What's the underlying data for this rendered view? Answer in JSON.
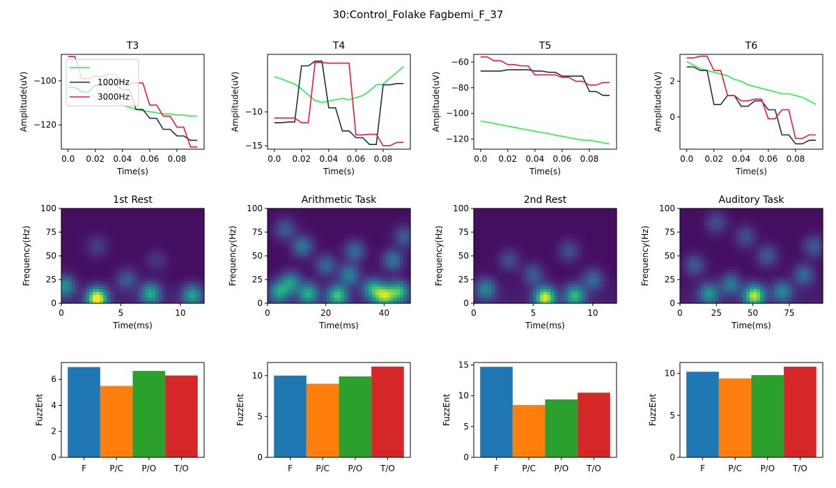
{
  "figure_title": "30:Control_Folake Fagbemi_F_37",
  "colors": {
    "green": "#22ee44",
    "navy": "#1a2e4a",
    "red": "#e8153c",
    "bar_F": "#1f77b4",
    "bar_PC": "#ff7f0e",
    "bar_PO": "#2ca02c",
    "bar_TO": "#d62728"
  },
  "chart_data": [
    {
      "type": "line",
      "title": "T3",
      "xlabel": "Time(s)",
      "ylabel": "Amplitude(uV)",
      "xlim": [
        -0.005,
        0.1
      ],
      "ylim": [
        -131,
        -88
      ],
      "xticks": [
        0.0,
        0.02,
        0.04,
        0.06,
        0.08
      ],
      "xtick_labels": [
        "0.0",
        "0.02",
        "0.04",
        "0.06",
        "0.08"
      ],
      "yticks": [
        -100,
        -120
      ],
      "ytick_labels": [
        "−100",
        "−120"
      ],
      "x": [
        0.0,
        0.005,
        0.01,
        0.015,
        0.02,
        0.025,
        0.03,
        0.035,
        0.04,
        0.045,
        0.05,
        0.055,
        0.06,
        0.065,
        0.07,
        0.075,
        0.08,
        0.085,
        0.09,
        0.095
      ],
      "legend": {
        "placement": "upper-left",
        "entries": [
          "",
          "1000Hz",
          "3000Hz"
        ]
      },
      "series": [
        {
          "color_key": "green",
          "values": [
            -103,
            -103,
            -104,
            -106,
            -107,
            -108,
            -109,
            -110,
            -111,
            -112,
            -113,
            -113.5,
            -114,
            -114.5,
            -115,
            -115,
            -115.5,
            -115.5,
            -116,
            -116
          ]
        },
        {
          "color_key": "navy",
          "values": [
            -103,
            -103,
            -105,
            -105,
            -102,
            -102,
            -102,
            -102,
            -104,
            -104,
            -113,
            -113,
            -117,
            -117,
            -122,
            -122,
            -125,
            -125,
            -127,
            -127
          ]
        },
        {
          "color_key": "red",
          "values": [
            -89,
            -89,
            -99,
            -99,
            -98,
            -98,
            -97,
            -97,
            -101,
            -101,
            -101,
            -101,
            -111,
            -111,
            -116,
            -116,
            -121,
            -121,
            -130,
            -130
          ]
        }
      ]
    },
    {
      "type": "line",
      "title": "T4",
      "xlabel": "Time(s)",
      "ylabel": "Amplitude(uV)",
      "xlim": [
        -0.005,
        0.1
      ],
      "ylim": [
        -15.5,
        -1.5
      ],
      "xticks": [
        0.0,
        0.02,
        0.04,
        0.06,
        0.08
      ],
      "xtick_labels": [
        "0.0",
        "0.02",
        "0.04",
        "0.06",
        "0.08"
      ],
      "yticks": [
        -10,
        -15
      ],
      "ytick_labels": [
        "−10",
        "−15"
      ],
      "x": [
        0.0,
        0.005,
        0.01,
        0.015,
        0.02,
        0.025,
        0.03,
        0.035,
        0.04,
        0.045,
        0.05,
        0.055,
        0.06,
        0.065,
        0.07,
        0.075,
        0.08,
        0.085,
        0.09,
        0.095
      ],
      "series": [
        {
          "color_key": "green",
          "values": [
            -4.8,
            -5.1,
            -5.5,
            -5.9,
            -6.6,
            -7.5,
            -8.3,
            -8.6,
            -8.4,
            -8.2,
            -8.0,
            -8.2,
            -7.9,
            -7.6,
            -6.9,
            -6.0,
            -5.9,
            -5.0,
            -4.2,
            -3.3
          ]
        },
        {
          "color_key": "navy",
          "values": [
            -11.6,
            -11.6,
            -11.5,
            -11.5,
            -3.2,
            -3.2,
            -2.5,
            -2.5,
            -9.4,
            -9.4,
            -12.8,
            -12.8,
            -13.8,
            -13.8,
            -14.8,
            -14.8,
            -6.0,
            -6.0,
            -5.8,
            -5.8
          ]
        },
        {
          "color_key": "red",
          "values": [
            -10.9,
            -10.9,
            -10.9,
            -10.9,
            -11.6,
            -11.6,
            -2.7,
            -2.7,
            -2.8,
            -2.8,
            -2.8,
            -2.8,
            -13.4,
            -13.4,
            -13.3,
            -13.3,
            -15.0,
            -15.0,
            -14.5,
            -14.5
          ]
        }
      ]
    },
    {
      "type": "line",
      "title": "T5",
      "xlabel": "Time(s)",
      "ylabel": "Amplitude(uV)",
      "xlim": [
        -0.005,
        0.1
      ],
      "ylim": [
        -128,
        -54
      ],
      "xticks": [
        0.0,
        0.02,
        0.04,
        0.06,
        0.08
      ],
      "xtick_labels": [
        "0.0",
        "0.02",
        "0.04",
        "0.06",
        "0.08"
      ],
      "yticks": [
        -60,
        -80,
        -100,
        -120
      ],
      "ytick_labels": [
        "−60",
        "−80",
        "−100",
        "−120"
      ],
      "x": [
        0.0,
        0.005,
        0.01,
        0.015,
        0.02,
        0.025,
        0.03,
        0.035,
        0.04,
        0.045,
        0.05,
        0.055,
        0.06,
        0.065,
        0.07,
        0.075,
        0.08,
        0.085,
        0.09,
        0.095
      ],
      "series": [
        {
          "color_key": "green",
          "values": [
            -106,
            -107,
            -108,
            -109,
            -110,
            -111,
            -112,
            -113,
            -114,
            -115,
            -116,
            -117,
            -118,
            -119,
            -120,
            -121,
            -121,
            -122,
            -123,
            -124
          ]
        },
        {
          "color_key": "navy",
          "values": [
            -67,
            -67,
            -67,
            -67,
            -66,
            -66,
            -66,
            -66,
            -67,
            -67,
            -68,
            -68,
            -71,
            -71,
            -71,
            -71,
            -83,
            -83,
            -86,
            -86
          ]
        },
        {
          "color_key": "red",
          "values": [
            -56,
            -56,
            -59,
            -59,
            -62,
            -62,
            -63,
            -63,
            -70,
            -70,
            -70,
            -70,
            -72,
            -72,
            -75,
            -75,
            -78,
            -78,
            -76,
            -76
          ]
        }
      ]
    },
    {
      "type": "line",
      "title": "T6",
      "xlabel": "Time(s)",
      "ylabel": "Amplitude(uV)",
      "xlim": [
        -0.005,
        0.1
      ],
      "ylim": [
        -1.8,
        3.5
      ],
      "xticks": [
        0.0,
        0.02,
        0.04,
        0.06,
        0.08
      ],
      "xtick_labels": [
        "0.0",
        "0.02",
        "0.04",
        "0.06",
        "0.08"
      ],
      "yticks": [
        2,
        0
      ],
      "ytick_labels": [
        "2",
        "0"
      ],
      "x": [
        0.0,
        0.005,
        0.01,
        0.015,
        0.02,
        0.025,
        0.03,
        0.035,
        0.04,
        0.045,
        0.05,
        0.055,
        0.06,
        0.065,
        0.07,
        0.075,
        0.08,
        0.085,
        0.09,
        0.095
      ],
      "series": [
        {
          "color_key": "green",
          "values": [
            3.1,
            2.9,
            2.7,
            2.6,
            2.5,
            2.4,
            2.3,
            2.1,
            2.0,
            1.8,
            1.7,
            1.6,
            1.5,
            1.4,
            1.3,
            1.3,
            1.2,
            1.1,
            0.9,
            0.7
          ]
        },
        {
          "color_key": "navy",
          "values": [
            2.8,
            2.8,
            2.6,
            2.6,
            0.7,
            0.7,
            1.2,
            1.2,
            0.6,
            0.6,
            0.9,
            0.9,
            0.4,
            0.4,
            -1.0,
            -1.0,
            -1.5,
            -1.5,
            -1.3,
            -1.3
          ]
        },
        {
          "color_key": "red",
          "values": [
            3.3,
            3.3,
            3.4,
            3.4,
            2.6,
            2.6,
            1.2,
            1.2,
            0.9,
            0.9,
            1.0,
            1.0,
            -0.1,
            -0.1,
            0.4,
            0.4,
            -1.2,
            -1.2,
            -1.0,
            -1.0
          ]
        }
      ]
    },
    {
      "type": "heatmap",
      "title": "1st Rest",
      "xlabel": "Time(ms)",
      "ylabel": "Frequency(Hz)",
      "xlim": [
        0,
        12
      ],
      "ylim": [
        0,
        100
      ],
      "xticks": [
        0,
        5,
        10
      ],
      "xtick_labels": [
        "0",
        "5",
        "10"
      ],
      "yticks": [
        0,
        25,
        50,
        75,
        100
      ],
      "ytick_labels": [
        "0",
        "25",
        "50",
        "75",
        "100"
      ],
      "colormap": "viridis",
      "hotspots": [
        [
          3,
          5,
          1.0
        ],
        [
          7.5,
          10,
          0.55
        ],
        [
          0.3,
          18,
          0.45
        ],
        [
          11,
          8,
          0.5
        ],
        [
          5.5,
          25,
          0.25
        ],
        [
          3,
          60,
          0.15
        ],
        [
          8,
          45,
          0.12
        ]
      ]
    },
    {
      "type": "heatmap",
      "title": "Arithmetic Task",
      "xlabel": "Time(ms)",
      "ylabel": "Frequency(Hz)",
      "xlim": [
        0,
        49
      ],
      "ylim": [
        0,
        100
      ],
      "xticks": [
        0,
        20,
        40
      ],
      "xtick_labels": [
        "0",
        "20",
        "40"
      ],
      "yticks": [
        0,
        25,
        50,
        75,
        100
      ],
      "ytick_labels": [
        "0",
        "25",
        "50",
        "75",
        "100"
      ],
      "colormap": "viridis",
      "hotspots": [
        [
          4,
          12,
          0.5
        ],
        [
          8,
          22,
          0.45
        ],
        [
          14,
          10,
          0.55
        ],
        [
          24,
          8,
          0.65
        ],
        [
          28,
          30,
          0.4
        ],
        [
          36,
          15,
          0.5
        ],
        [
          40,
          8,
          0.75
        ],
        [
          45,
          12,
          0.6
        ],
        [
          12,
          60,
          0.35
        ],
        [
          30,
          55,
          0.3
        ],
        [
          43,
          45,
          0.35
        ],
        [
          20,
          40,
          0.3
        ],
        [
          6,
          78,
          0.25
        ],
        [
          47,
          70,
          0.25
        ]
      ]
    },
    {
      "type": "heatmap",
      "title": "2nd Rest",
      "xlabel": "Time(ms)",
      "ylabel": "Frequency(Hz)",
      "xlim": [
        0,
        12
      ],
      "ylim": [
        0,
        100
      ],
      "xticks": [
        0,
        5,
        10
      ],
      "xtick_labels": [
        "0",
        "5",
        "10"
      ],
      "yticks": [
        0,
        25,
        50,
        75,
        100
      ],
      "ytick_labels": [
        "0",
        "25",
        "50",
        "75",
        "100"
      ],
      "colormap": "viridis",
      "hotspots": [
        [
          6,
          6,
          0.9
        ],
        [
          8.5,
          8,
          0.6
        ],
        [
          1,
          15,
          0.4
        ],
        [
          10,
          25,
          0.3
        ],
        [
          3,
          45,
          0.2
        ],
        [
          8,
          55,
          0.2
        ],
        [
          5,
          30,
          0.25
        ]
      ]
    },
    {
      "type": "heatmap",
      "title": "Auditory Task",
      "xlabel": "Time(ms)",
      "ylabel": "Frequency(Hz)",
      "xlim": [
        0,
        98
      ],
      "ylim": [
        0,
        100
      ],
      "xticks": [
        0,
        25,
        50,
        75
      ],
      "xtick_labels": [
        "0",
        "25",
        "50",
        "75"
      ],
      "yticks": [
        0,
        25,
        50,
        75,
        100
      ],
      "ytick_labels": [
        "0",
        "25",
        "50",
        "75",
        "100"
      ],
      "colormap": "viridis",
      "hotspots": [
        [
          51,
          8,
          0.85
        ],
        [
          20,
          10,
          0.45
        ],
        [
          35,
          20,
          0.35
        ],
        [
          70,
          12,
          0.4
        ],
        [
          85,
          30,
          0.3
        ],
        [
          10,
          40,
          0.25
        ],
        [
          60,
          50,
          0.25
        ],
        [
          92,
          60,
          0.25
        ],
        [
          45,
          70,
          0.2
        ],
        [
          25,
          85,
          0.2
        ]
      ]
    },
    {
      "type": "bar",
      "title": "",
      "xlabel": "",
      "ylabel": "FuzzEnt",
      "categories": [
        "F",
        "P/C",
        "P/O",
        "T/O"
      ],
      "values": [
        6.95,
        5.5,
        6.65,
        6.3
      ],
      "ylim": [
        0,
        7.3
      ],
      "yticks": [
        0,
        2,
        4,
        6
      ],
      "ytick_labels": [
        "0",
        "2",
        "4",
        "6"
      ]
    },
    {
      "type": "bar",
      "title": "",
      "xlabel": "",
      "ylabel": "FuzzEnt",
      "categories": [
        "F",
        "P/C",
        "P/O",
        "T/O"
      ],
      "values": [
        10.0,
        9.0,
        9.9,
        11.1
      ],
      "ylim": [
        0,
        11.6
      ],
      "yticks": [
        0,
        5,
        10
      ],
      "ytick_labels": [
        "0",
        "5",
        "10"
      ]
    },
    {
      "type": "bar",
      "title": "",
      "xlabel": "",
      "ylabel": "FuzzEnt",
      "categories": [
        "F",
        "P/C",
        "P/O",
        "T/O"
      ],
      "values": [
        14.7,
        8.5,
        9.4,
        10.5
      ],
      "ylim": [
        0,
        15.4
      ],
      "yticks": [
        0,
        5,
        10,
        15
      ],
      "ytick_labels": [
        "0",
        "5",
        "10",
        "15"
      ]
    },
    {
      "type": "bar",
      "title": "",
      "xlabel": "",
      "ylabel": "FuzzEnt",
      "categories": [
        "F",
        "P/C",
        "P/O",
        "T/O"
      ],
      "values": [
        10.2,
        9.4,
        9.8,
        10.8
      ],
      "ylim": [
        0,
        11.3
      ],
      "yticks": [
        0,
        5,
        10
      ],
      "ytick_labels": [
        "0",
        "5",
        "10"
      ]
    }
  ]
}
